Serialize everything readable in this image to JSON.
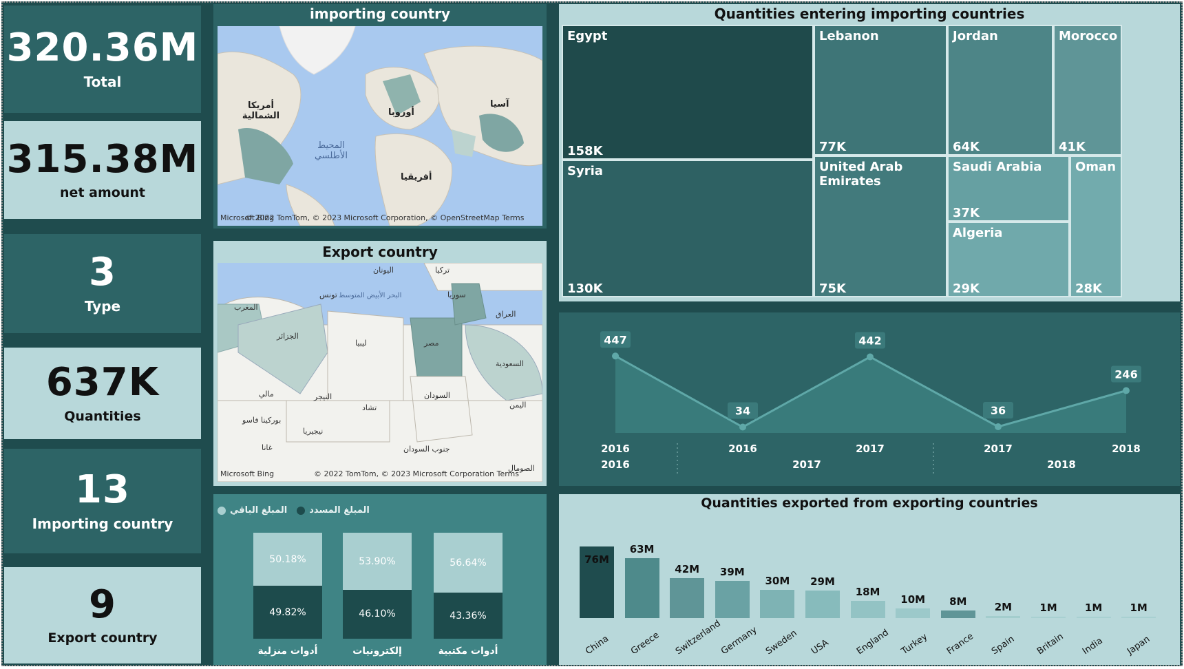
{
  "kpis": [
    {
      "value": "320.36M",
      "label": "Total"
    },
    {
      "value": "315.38M",
      "label": "net amount"
    },
    {
      "value": "3",
      "label": "Type"
    },
    {
      "value": "637K",
      "label": "Quantities"
    },
    {
      "value": "13",
      "label": "Importing country"
    },
    {
      "value": "9",
      "label": "Export country"
    }
  ],
  "import_map": {
    "title": "importing country",
    "labels": [
      "أمريكا الشمالية",
      "أوروبا",
      "آسيا",
      "المحيط الأطلسي",
      "أفريقيا"
    ],
    "copyright": "© 2022 TomTom, © 2023 Microsoft Corporation, © OpenStreetMap Terms",
    "brand": "Microsoft Bing"
  },
  "export_map": {
    "title": "Export country",
    "labels": [
      "اليونان",
      "تركيا",
      "تونس",
      "البحر الأبيض المتوسط",
      "سوريا",
      "المغرب",
      "العراق",
      "الجزائر",
      "ليبيا",
      "مصر",
      "السعودية",
      "مالي",
      "النيجر",
      "تشاد",
      "السودان",
      "اليمن",
      "بوركينا فاسو",
      "نيجيريا",
      "غانا",
      "جنوب السودان",
      "الصومال"
    ],
    "copyright": "© 2022 TomTom, © 2023 Microsoft Corporation Terms",
    "brand": "Microsoft Bing"
  },
  "treemap": {
    "title": "Quantities entering importing countries",
    "items": [
      {
        "name": "Egypt",
        "value": "158K",
        "color": "#1f4a4b"
      },
      {
        "name": "Syria",
        "value": "130K",
        "color": "#2e6163"
      },
      {
        "name": "Lebanon",
        "value": "77K",
        "color": "#3e7577"
      },
      {
        "name": "United Arab Emirates",
        "value": "75K",
        "color": "#427a7c"
      },
      {
        "name": "Jordan",
        "value": "64K",
        "color": "#4d8587"
      },
      {
        "name": "Morocco",
        "value": "41K",
        "color": "#5f9597"
      },
      {
        "name": "Saudi Arabia",
        "value": "37K",
        "color": "#66a0a2"
      },
      {
        "name": "Algeria",
        "value": "29K",
        "color": "#70a9ab"
      },
      {
        "name": "Oman",
        "value": "28K",
        "color": "#72abad"
      }
    ]
  },
  "line_chart": {
    "points": [
      {
        "value": 447,
        "label": "447",
        "x1": "2016",
        "x2": "2016"
      },
      {
        "value": 34,
        "label": "34",
        "x1": "2016",
        "x2": ""
      },
      {
        "value": 442,
        "label": "442",
        "x1": "2017",
        "x2": "2017"
      },
      {
        "value": 36,
        "label": "36",
        "x1": "2017",
        "x2": ""
      },
      {
        "value": 246,
        "label": "246",
        "x1": "2018",
        "x2": "2018"
      }
    ],
    "groups": [
      "2016",
      "2017",
      "2018"
    ]
  },
  "stacked": {
    "legend_paid": "المبلغ المسدد",
    "legend_remaining": "المبلغ الباقي",
    "items": [
      {
        "name": "أدوات منزلية",
        "remaining": 50.18,
        "paid": 49.82,
        "remaining_label": "50.18%",
        "paid_label": "49.82%"
      },
      {
        "name": "إلكترونيات",
        "remaining": 53.9,
        "paid": 46.1,
        "remaining_label": "53.90%",
        "paid_label": "46.10%"
      },
      {
        "name": "أدوات مكتبية",
        "remaining": 56.64,
        "paid": 43.36,
        "remaining_label": "56.64%",
        "paid_label": "43.36%"
      }
    ]
  },
  "chart_data": {
    "type": "bar",
    "title": "Quantities exported from exporting countries",
    "categories": [
      "China",
      "Greece",
      "Switzerland",
      "Germany",
      "Sweden",
      "USA",
      "England",
      "Turkey",
      "France",
      "Spain",
      "Britain",
      "India",
      "Japan"
    ],
    "values": [
      76,
      63,
      42,
      39,
      30,
      29,
      18,
      10,
      8,
      2,
      1,
      1,
      1
    ],
    "labels": [
      "76M",
      "63M",
      "42M",
      "39M",
      "30M",
      "29M",
      "18M",
      "10M",
      "8M",
      "2M",
      "1M",
      "1M",
      "1M"
    ],
    "xlabel": "",
    "ylabel": "",
    "ylim": [
      0,
      80
    ]
  },
  "colors": {
    "dark": "#1f4c4e",
    "panel": "#2d6466",
    "light": "#b8d8da"
  }
}
